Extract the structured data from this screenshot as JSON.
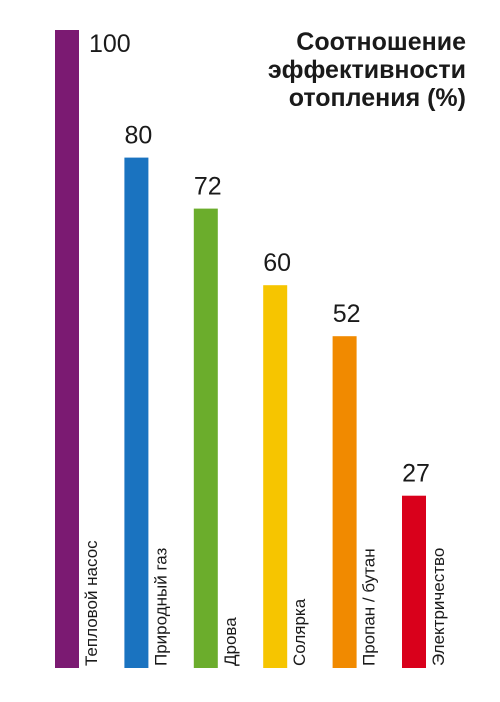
{
  "chart_data": {
    "type": "bar",
    "orientation": "vertical",
    "title": "Соотношение\nэффективности\nотопления (%)",
    "xlabel": "",
    "ylabel": "",
    "ylim": [
      0,
      100
    ],
    "grid": false,
    "legend": "none",
    "categories": [
      "Тепловой насос",
      "Природный газ",
      "Дрова",
      "Солярка",
      "Пропан / бутан",
      "Электричество"
    ],
    "values": [
      100,
      80,
      72,
      60,
      52,
      27
    ],
    "value_labels": [
      "100",
      "80",
      "72",
      "60",
      "52",
      "27"
    ],
    "colors": [
      "#7b1a72",
      "#1a73c0",
      "#6bad2c",
      "#f6c500",
      "#f18a00",
      "#d9001b"
    ]
  }
}
